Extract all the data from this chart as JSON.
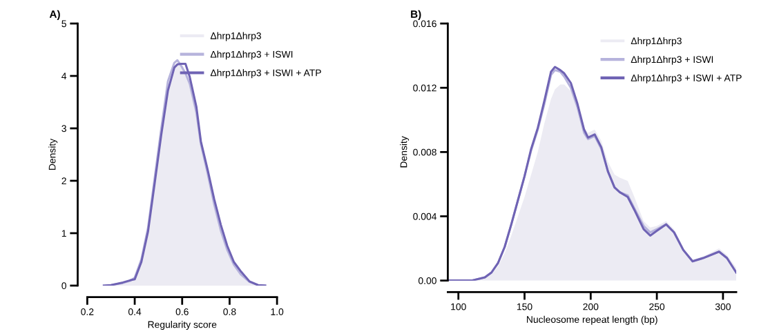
{
  "chart_data": [
    {
      "type": "line",
      "title": "A)",
      "xlabel": "Regularity score",
      "ylabel": "Density",
      "xlim": [
        0.2,
        1.0
      ],
      "ylim": [
        0,
        5
      ],
      "xticks": [
        0.2,
        0.4,
        0.6,
        0.8,
        {
          "value": 1,
          "label": "1.0"
        }
      ],
      "yticks": [
        0,
        1,
        2,
        3,
        4,
        5
      ],
      "legend": "top right",
      "grid": false,
      "x": [
        0.27,
        0.3,
        0.35,
        0.38,
        0.4,
        0.428,
        0.456,
        0.484,
        0.512,
        0.54,
        0.567,
        0.58,
        0.595,
        0.614,
        0.632,
        0.66,
        0.679,
        0.707,
        0.735,
        0.763,
        0.79,
        0.818,
        0.846,
        0.884,
        0.92,
        0.95
      ],
      "series": [
        {
          "name": "Δhrp1Δhrp3",
          "type": "area",
          "color": "#ecebf3",
          "values": [
            0,
            0.01,
            0.05,
            0.09,
            0.14,
            0.45,
            1.05,
            2.0,
            2.95,
            3.85,
            4.2,
            4.25,
            4.2,
            4.05,
            3.85,
            3.3,
            2.7,
            2.15,
            1.55,
            1.0,
            0.62,
            0.38,
            0.2,
            0.06,
            0.01,
            0
          ]
        },
        {
          "name": "Δhrp1Δhrp3 + ISWI",
          "color": "#b6b3dc",
          "values": [
            0,
            0.01,
            0.05,
            0.09,
            0.15,
            0.5,
            1.1,
            2.05,
            3.0,
            3.9,
            4.25,
            4.3,
            4.2,
            4.05,
            3.85,
            3.3,
            2.7,
            2.15,
            1.55,
            1.05,
            0.68,
            0.4,
            0.22,
            0.07,
            0.01,
            0
          ]
        },
        {
          "name": "Δhrp1Δhrp3 + ISWI + ATP",
          "color": "#6f63b4",
          "values": [
            0,
            0.01,
            0.06,
            0.1,
            0.12,
            0.45,
            1.03,
            1.95,
            2.88,
            3.72,
            4.16,
            4.22,
            4.23,
            4.23,
            3.98,
            3.41,
            2.75,
            2.22,
            1.65,
            1.16,
            0.76,
            0.45,
            0.28,
            0.08,
            0.01,
            0
          ]
        }
      ]
    },
    {
      "type": "line",
      "title": "B)",
      "xlabel": "Nucleosome repeat length (bp)",
      "ylabel": "Density",
      "xlim": [
        92,
        310
      ],
      "ylim": [
        0,
        0.016
      ],
      "xticks": [
        100,
        150,
        200,
        250,
        300
      ],
      "yticks": [
        {
          "value": 0,
          "label": "0.00"
        },
        0.004,
        0.008,
        0.012,
        0.016
      ],
      "legend": "top right",
      "grid": false,
      "x": [
        92,
        110,
        120,
        125,
        130,
        135,
        140,
        145,
        150,
        155,
        160,
        165,
        170,
        173,
        177,
        180,
        185,
        190,
        195,
        198,
        203,
        208,
        213,
        218,
        222,
        228,
        233,
        240,
        245,
        250,
        257,
        263,
        270,
        277,
        285,
        297,
        303,
        310
      ],
      "series": [
        {
          "name": "Δhrp1Δhrp3",
          "type": "area",
          "color": "#ecebf3",
          "values": [
            0,
            0,
            0.0002,
            0.0004,
            0.0009,
            0.0017,
            0.0028,
            0.004,
            0.0052,
            0.0066,
            0.008,
            0.0098,
            0.0113,
            0.0119,
            0.0122,
            0.0122,
            0.0118,
            0.0108,
            0.0095,
            0.0092,
            0.0094,
            0.0087,
            0.0074,
            0.0066,
            0.0064,
            0.0062,
            0.0052,
            0.0037,
            0.0033,
            0.0034,
            0.0037,
            0.0032,
            0.002,
            0.0013,
            0.0015,
            0.002,
            0.0016,
            0.0008
          ]
        },
        {
          "name": "Δhrp1Δhrp3 + ISWI",
          "color": "#b6b3dc",
          "values": [
            0,
            0,
            0.0002,
            0.0005,
            0.0011,
            0.0021,
            0.0035,
            0.005,
            0.0065,
            0.0081,
            0.0094,
            0.011,
            0.0128,
            0.0131,
            0.013,
            0.0127,
            0.012,
            0.0108,
            0.0092,
            0.0088,
            0.009,
            0.0082,
            0.0068,
            0.0058,
            0.0055,
            0.0053,
            0.0045,
            0.0034,
            0.003,
            0.0032,
            0.0035,
            0.003,
            0.0019,
            0.0012,
            0.0014,
            0.0018,
            0.0014,
            0.0005
          ]
        },
        {
          "name": "Δhrp1Δhrp3 + ISWI + ATP",
          "color": "#6f63b4",
          "values": [
            0,
            0,
            0.0002,
            0.0005,
            0.0011,
            0.0021,
            0.0035,
            0.005,
            0.0065,
            0.0082,
            0.0095,
            0.0112,
            0.013,
            0.0133,
            0.0131,
            0.0129,
            0.0123,
            0.011,
            0.0094,
            0.0089,
            0.0091,
            0.0083,
            0.0068,
            0.0058,
            0.0055,
            0.0052,
            0.0044,
            0.0032,
            0.0028,
            0.0031,
            0.0035,
            0.003,
            0.0019,
            0.0012,
            0.0014,
            0.0018,
            0.0014,
            0.0005
          ]
        }
      ]
    }
  ]
}
